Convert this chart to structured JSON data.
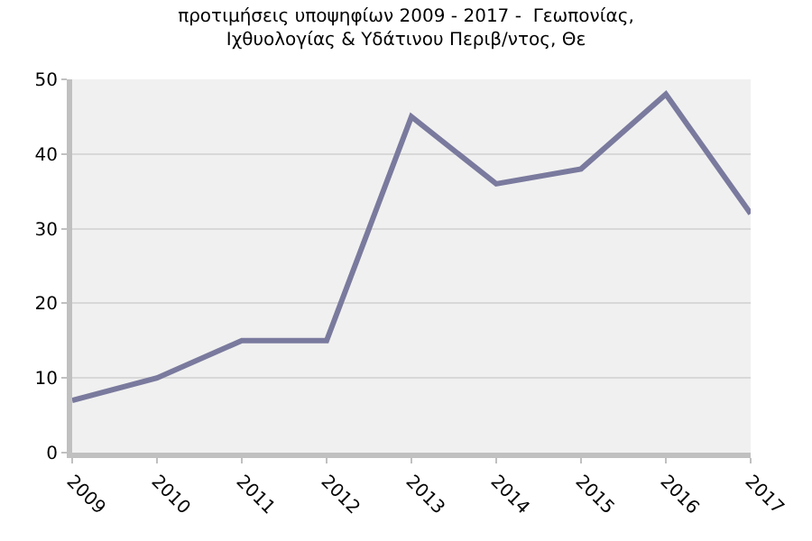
{
  "chart_data": {
    "type": "line",
    "title": "προτιμήσεις υποψηφίων 2009 - 2017 -  Γεωπονίας, Ιχθυολογίας & Υδάτινου Περιβ/ντος, Θε",
    "categories": [
      "2009",
      "2010",
      "2011",
      "2012",
      "2013",
      "2014",
      "2015",
      "2016",
      "2017"
    ],
    "series": [
      {
        "color": "#7a7a9e",
        "values": [
          7,
          10,
          15,
          15,
          45,
          36,
          38,
          48,
          32
        ]
      }
    ],
    "ylim": [
      0,
      50
    ],
    "yticks": [
      0,
      10,
      20,
      30,
      40,
      50
    ],
    "grid": "y",
    "legend": false,
    "marker": "none",
    "line_style": "solid"
  }
}
